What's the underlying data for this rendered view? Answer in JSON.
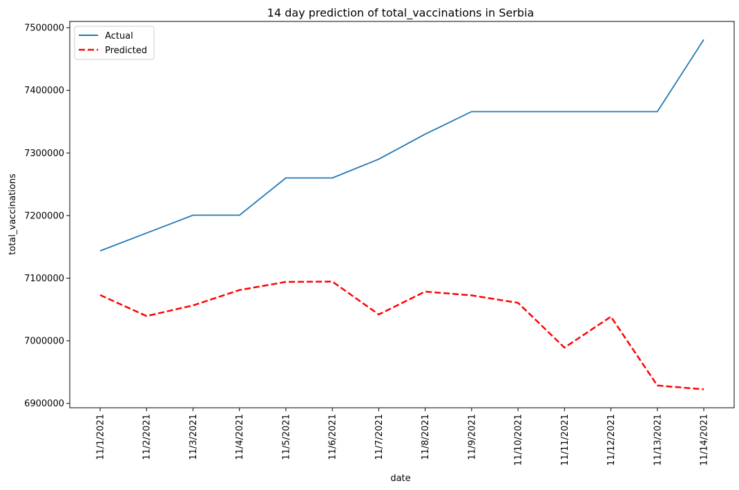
{
  "chart_data": {
    "type": "line",
    "title": "14 day prediction of total_vaccinations in Serbia",
    "xlabel": "date",
    "ylabel": "total_vaccinations",
    "categories": [
      "11/1/2021",
      "11/2/2021",
      "11/3/2021",
      "11/4/2021",
      "11/5/2021",
      "11/6/2021",
      "11/7/2021",
      "11/8/2021",
      "11/9/2021",
      "11/10/2021",
      "11/11/2021",
      "11/12/2021",
      "11/13/2021",
      "11/14/2021"
    ],
    "yticks": [
      "6900000",
      "7000000",
      "7100000",
      "7200000",
      "7300000",
      "7400000",
      "7500000"
    ],
    "ylim": [
      6893000,
      7510000
    ],
    "series": [
      {
        "name": "Actual",
        "color": "#1f77b4",
        "style": "solid",
        "values": [
          7143500,
          7172000,
          7200500,
          7200500,
          7260000,
          7260000,
          7290000,
          7330000,
          7366000,
          7366000,
          7366000,
          7366000,
          7366000,
          7481000
        ]
      },
      {
        "name": "Predicted",
        "color": "#ff0000",
        "style": "dashed",
        "values": [
          7073000,
          7039500,
          7056500,
          7081000,
          7094000,
          7094500,
          7042000,
          7078500,
          7072500,
          7060500,
          6989000,
          7038500,
          6928500,
          6922500
        ]
      }
    ],
    "legend_position": "top-left",
    "grid": false
  }
}
